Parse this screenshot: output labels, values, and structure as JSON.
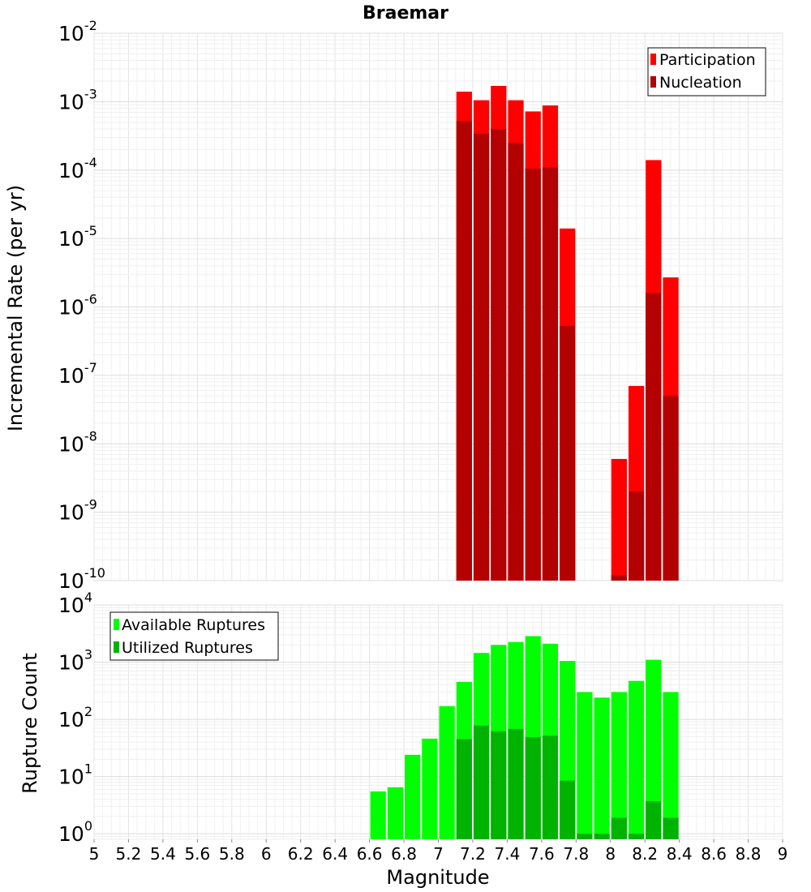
{
  "chart_data": [
    {
      "type": "bar",
      "title": "Braemar",
      "ylabel": "Incremental Rate (per yr)",
      "xlim": [
        5,
        9
      ],
      "ylim": [
        1e-10,
        0.01
      ],
      "yscale": "log",
      "grid": true,
      "legend_position": "top-right",
      "bar_width": 0.1,
      "x": [
        7.15,
        7.25,
        7.35,
        7.45,
        7.55,
        7.65,
        7.75,
        8.05,
        8.15,
        8.25,
        8.35
      ],
      "series": [
        {
          "name": "Participation",
          "color": "#ff0000",
          "values": [
            0.0014,
            0.00105,
            0.0017,
            0.00105,
            0.00072,
            0.00088,
            1.4e-05,
            6e-09,
            7e-08,
            0.00014,
            2.7e-06
          ]
        },
        {
          "name": "Nucleation",
          "color": "#b30000",
          "values": [
            0.00052,
            0.00034,
            0.0004,
            0.00025,
            0.000105,
            0.00011,
            5.3e-07,
            1.2e-10,
            2e-09,
            1.6e-06,
            5e-08
          ]
        }
      ],
      "yticks": [
        {
          "base": "10",
          "exp": "-10"
        },
        {
          "base": "10",
          "exp": "-9"
        },
        {
          "base": "10",
          "exp": "-8"
        },
        {
          "base": "10",
          "exp": "-7"
        },
        {
          "base": "10",
          "exp": "-6"
        },
        {
          "base": "10",
          "exp": "-5"
        },
        {
          "base": "10",
          "exp": "-4"
        },
        {
          "base": "10",
          "exp": "-3"
        },
        {
          "base": "10",
          "exp": "-2"
        }
      ]
    },
    {
      "type": "bar",
      "ylabel": "Rupture Count",
      "xlabel": "Magnitude",
      "xlim": [
        5,
        9
      ],
      "ylim": [
        0.8,
        10000
      ],
      "yscale": "log",
      "grid": true,
      "legend_position": "top-left",
      "bar_width": 0.1,
      "x": [
        6.65,
        6.75,
        6.85,
        6.95,
        7.05,
        7.15,
        7.25,
        7.35,
        7.45,
        7.55,
        7.65,
        7.75,
        7.85,
        7.95,
        8.05,
        8.15,
        8.25,
        8.35
      ],
      "series": [
        {
          "name": "Available Ruptures",
          "color": "#00ff00",
          "values": [
            5.5,
            6.5,
            24,
            46,
            170,
            450,
            1450,
            2000,
            2250,
            2850,
            2100,
            1050,
            300,
            240,
            300,
            470,
            1100,
            300
          ]
        },
        {
          "name": "Utilized Ruptures",
          "color": "#00b300",
          "values": [
            0,
            0,
            0,
            0,
            0,
            45,
            78,
            62,
            68,
            49,
            52,
            8.5,
            1,
            1,
            1.9,
            1,
            3.7,
            1.9
          ]
        }
      ],
      "yticks": [
        {
          "base": "10",
          "exp": "0"
        },
        {
          "base": "10",
          "exp": "1"
        },
        {
          "base": "10",
          "exp": "2"
        },
        {
          "base": "10",
          "exp": "3"
        },
        {
          "base": "10",
          "exp": "4"
        }
      ],
      "xticks": [
        "5",
        "5.2",
        "5.4",
        "5.6",
        "5.8",
        "6",
        "6.2",
        "6.4",
        "6.6",
        "6.8",
        "7",
        "7.2",
        "7.4",
        "7.6",
        "7.8",
        "8",
        "8.2",
        "8.4",
        "8.6",
        "8.8",
        "9"
      ]
    }
  ]
}
